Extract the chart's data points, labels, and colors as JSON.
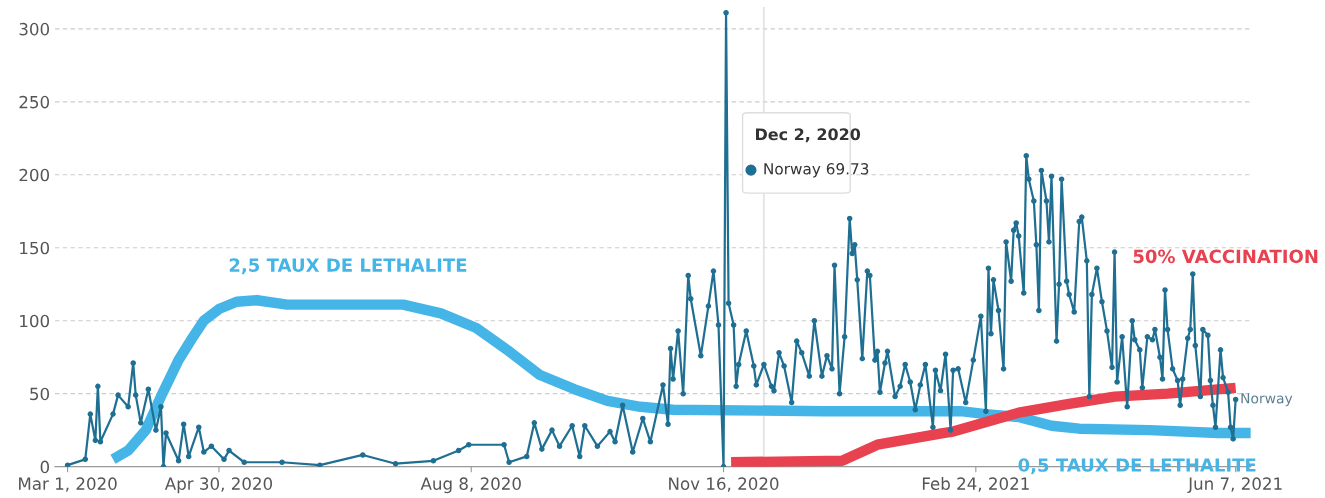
{
  "chart_data": {
    "type": "line",
    "xlim": [
      "2020-02-25",
      "2021-06-13"
    ],
    "ylim": [
      0,
      315
    ],
    "xticks": [
      {
        "value": "2020-03-01",
        "label": "Mar 1, 2020"
      },
      {
        "value": "2020-04-30",
        "label": "Apr 30, 2020"
      },
      {
        "value": "2020-08-08",
        "label": "Aug 8, 2020"
      },
      {
        "value": "2020-11-16",
        "label": "Nov 16, 2020"
      },
      {
        "value": "2021-02-24",
        "label": "Feb 24, 2021"
      },
      {
        "value": "2021-06-07",
        "label": "Jun 7, 2021"
      }
    ],
    "yticks": [
      0,
      50,
      100,
      150,
      200,
      250,
      300
    ],
    "grid": "y",
    "series": [
      {
        "name": "Norway",
        "color": "#1f6f93",
        "marker": "circle",
        "x": [
          "2020-03-01",
          "2020-03-08",
          "2020-03-10",
          "2020-03-12",
          "2020-03-13",
          "2020-03-14",
          "2020-03-19",
          "2020-03-21",
          "2020-03-25",
          "2020-03-27",
          "2020-03-28",
          "2020-03-30",
          "2020-04-02",
          "2020-04-05",
          "2020-04-07",
          "2020-04-08",
          "2020-04-09",
          "2020-04-14",
          "2020-04-16",
          "2020-04-18",
          "2020-04-22",
          "2020-04-24",
          "2020-04-27",
          "2020-05-02",
          "2020-05-04",
          "2020-05-10",
          "2020-05-25",
          "2020-06-09",
          "2020-06-26",
          "2020-07-09",
          "2020-07-24",
          "2020-08-03",
          "2020-08-07",
          "2020-08-21",
          "2020-08-23",
          "2020-08-30",
          "2020-09-02",
          "2020-09-05",
          "2020-09-09",
          "2020-09-12",
          "2020-09-17",
          "2020-09-20",
          "2020-09-22",
          "2020-09-27",
          "2020-10-02",
          "2020-10-04",
          "2020-10-07",
          "2020-10-11",
          "2020-10-15",
          "2020-10-18",
          "2020-10-23",
          "2020-10-25",
          "2020-10-26",
          "2020-10-27",
          "2020-10-29",
          "2020-10-31",
          "2020-11-02",
          "2020-11-03",
          "2020-11-07",
          "2020-11-10",
          "2020-11-12",
          "2020-11-14",
          "2020-11-16",
          "2020-11-17",
          "2020-11-18",
          "2020-11-20",
          "2020-11-21",
          "2020-11-22",
          "2020-11-25",
          "2020-11-28",
          "2020-11-29",
          "2020-12-02",
          "2020-12-05",
          "2020-12-06",
          "2020-12-08",
          "2020-12-10",
          "2020-12-13",
          "2020-12-15",
          "2020-12-17",
          "2020-12-20",
          "2020-12-22",
          "2020-12-25",
          "2020-12-27",
          "2020-12-29",
          "2020-12-30",
          "2021-01-01",
          "2021-01-03",
          "2021-01-05",
          "2021-01-06",
          "2021-01-07",
          "2021-01-08",
          "2021-01-10",
          "2021-01-12",
          "2021-01-13",
          "2021-01-15",
          "2021-01-16",
          "2021-01-17",
          "2021-01-19",
          "2021-01-20",
          "2021-01-23",
          "2021-01-25",
          "2021-01-27",
          "2021-01-29",
          "2021-01-31",
          "2021-02-02",
          "2021-02-04",
          "2021-02-07",
          "2021-02-08",
          "2021-02-10",
          "2021-02-12",
          "2021-02-14",
          "2021-02-15",
          "2021-02-17",
          "2021-02-20",
          "2021-02-23",
          "2021-02-26",
          "2021-02-28",
          "2021-03-01",
          "2021-03-02",
          "2021-03-03",
          "2021-03-05",
          "2021-03-07",
          "2021-03-08",
          "2021-03-10",
          "2021-03-11",
          "2021-03-12",
          "2021-03-13",
          "2021-03-15",
          "2021-03-16",
          "2021-03-17",
          "2021-03-19",
          "2021-03-20",
          "2021-03-21",
          "2021-03-22",
          "2021-03-24",
          "2021-03-25",
          "2021-03-26",
          "2021-03-28",
          "2021-03-29",
          "2021-03-30",
          "2021-04-01",
          "2021-04-02",
          "2021-04-04",
          "2021-04-06",
          "2021-04-07",
          "2021-04-09",
          "2021-04-10",
          "2021-04-11",
          "2021-04-13",
          "2021-04-15",
          "2021-04-17",
          "2021-04-19",
          "2021-04-20",
          "2021-04-21",
          "2021-04-23",
          "2021-04-25",
          "2021-04-27",
          "2021-04-28",
          "2021-04-30",
          "2021-05-01",
          "2021-05-03",
          "2021-05-05",
          "2021-05-06",
          "2021-05-08",
          "2021-05-09",
          "2021-05-10",
          "2021-05-11",
          "2021-05-13",
          "2021-05-15",
          "2021-05-16",
          "2021-05-17",
          "2021-05-19",
          "2021-05-20",
          "2021-05-21",
          "2021-05-22",
          "2021-05-24",
          "2021-05-25",
          "2021-05-27",
          "2021-05-28",
          "2021-05-29",
          "2021-05-30",
          "2021-06-01",
          "2021-06-02",
          "2021-06-04",
          "2021-06-05",
          "2021-06-06",
          "2021-06-07"
        ],
        "values": [
          1,
          5,
          36,
          18,
          55,
          17,
          36,
          49,
          41,
          71,
          49,
          30,
          53,
          25,
          41,
          0,
          23,
          4,
          29,
          7,
          27,
          10,
          14,
          5,
          11,
          3,
          3,
          1,
          8,
          2,
          4,
          11,
          15,
          15,
          3,
          7,
          30,
          12,
          25,
          14,
          28,
          7,
          28,
          14,
          24,
          17,
          42,
          10,
          33,
          17,
          56,
          29,
          81,
          60,
          93,
          50,
          131,
          115,
          76,
          110,
          134,
          97,
          0,
          311,
          112,
          97,
          55,
          70,
          93,
          69,
          56,
          70,
          55,
          52,
          78,
          69,
          44,
          86,
          78,
          62,
          100,
          62,
          76,
          67,
          138,
          50,
          89,
          170,
          146,
          152,
          128,
          74,
          134,
          131,
          73,
          79,
          51,
          71,
          79,
          48,
          55,
          70,
          58,
          39,
          56,
          70,
          27,
          66,
          52,
          77,
          25,
          66,
          67,
          44,
          73,
          103,
          38,
          136,
          91,
          128,
          107,
          67,
          154,
          127,
          162,
          167,
          158,
          119,
          213,
          197,
          182,
          152,
          107,
          203,
          182,
          154,
          199,
          86,
          125,
          197,
          127,
          118,
          106,
          168,
          171,
          141,
          48,
          118,
          136,
          113,
          93,
          68,
          147,
          58,
          89,
          41,
          100,
          87,
          80,
          54,
          89,
          87,
          94,
          75,
          60,
          121,
          94,
          67,
          59,
          42,
          60,
          88,
          94,
          132,
          83,
          48,
          94,
          90,
          59,
          42,
          27,
          80,
          61,
          51,
          27,
          19,
          46
        ]
      },
      {
        "name": "2,5 TAUX DE LETHALITE",
        "color": "#45b4e7",
        "marker": "none",
        "x": [
          "2020-03-19",
          "2020-03-25",
          "2020-04-01",
          "2020-04-07",
          "2020-04-14",
          "2020-04-19",
          "2020-04-24",
          "2020-04-30",
          "2020-05-07",
          "2020-05-15",
          "2020-05-27",
          "2020-06-18",
          "2020-07-12",
          "2020-07-27",
          "2020-08-10",
          "2020-08-23",
          "2020-09-04",
          "2020-09-18",
          "2020-10-01",
          "2020-10-14",
          "2020-10-27",
          "2020-12-26",
          "2021-02-18",
          "2021-02-28",
          "2021-03-13",
          "2021-03-26",
          "2021-04-06",
          "2021-05-04",
          "2021-05-31",
          "2021-06-13"
        ],
        "values": [
          5,
          11,
          25,
          48,
          73,
          87,
          100,
          108,
          113,
          114,
          111,
          111,
          111,
          105,
          95,
          79,
          63,
          53,
          45,
          41,
          39,
          38,
          38,
          36,
          34,
          28,
          26,
          25,
          23,
          23
        ]
      },
      {
        "name": "50% VACCINATION",
        "color": "#e8414f",
        "marker": "none",
        "x": [
          "2020-11-19",
          "2021-01-02",
          "2021-01-16",
          "2021-01-29",
          "2021-02-11",
          "2021-02-15",
          "2021-03-13",
          "2021-04-02",
          "2021-04-20",
          "2021-05-11",
          "2021-06-07"
        ],
        "values": [
          3,
          4,
          15,
          19,
          23,
          24,
          37,
          43,
          48,
          50,
          54
        ]
      }
    ],
    "ref_lines": [
      {
        "axis": "x",
        "value": "2020-12-02",
        "color": "#dddddd"
      }
    ],
    "annotations": [
      "0,5 TAUX DE LETHALITE",
      "Dec 2, 2020",
      "Norway 69.73"
    ]
  }
}
